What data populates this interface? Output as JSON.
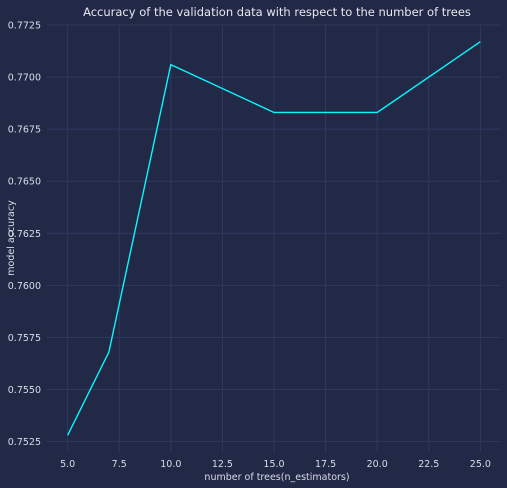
{
  "chart_data": {
    "type": "line",
    "title": "Accuracy of the validation data with respect to the number of trees",
    "xlabel": "number of trees(n_estimators)",
    "ylabel": "model accuracy",
    "x": [
      5,
      7,
      10,
      15,
      20,
      25
    ],
    "series": [
      {
        "values": [
          0.7528,
          0.7568,
          0.7706,
          0.7683,
          0.7683,
          0.7717
        ]
      }
    ],
    "xlim": [
      4,
      26
    ],
    "ylim": [
      0.752,
      0.7725
    ],
    "xticks": [
      5.0,
      7.5,
      10.0,
      12.5,
      15.0,
      17.5,
      20.0,
      22.5,
      25.0
    ],
    "xtick_labels": [
      "5.0",
      "7.5",
      "10.0",
      "12.5",
      "15.0",
      "17.5",
      "20.0",
      "22.5",
      "25.0"
    ],
    "yticks": [
      0.7525,
      0.755,
      0.7575,
      0.76,
      0.7625,
      0.765,
      0.7675,
      0.77,
      0.7725
    ],
    "ytick_labels": [
      "0.7525",
      "0.7550",
      "0.7575",
      "0.7600",
      "0.7625",
      "0.7650",
      "0.7675",
      "0.7700",
      "0.7725"
    ],
    "grid": true,
    "line_color": "#08F7FE",
    "background": "#212946",
    "grid_color": "#2d3a60"
  }
}
